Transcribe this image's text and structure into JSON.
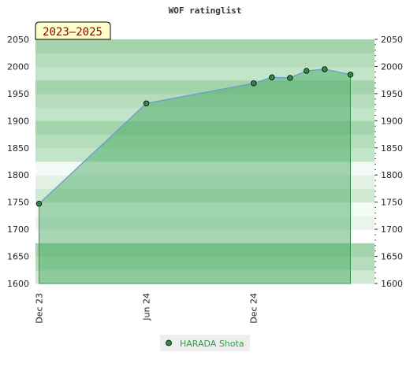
{
  "chart_data": {
    "type": "area",
    "title": "WOF ratinglist",
    "badge": "2023–2025",
    "ylim": [
      1600,
      2050
    ],
    "yticks": [
      1600,
      1650,
      1700,
      1750,
      1800,
      1850,
      1900,
      1950,
      2000,
      2050
    ],
    "xlim": [
      "2023-11-25",
      "2025-06-25"
    ],
    "xticks": [
      {
        "label": "Dec 23",
        "date": "2023-12-01"
      },
      {
        "label": "Jun 24",
        "date": "2024-06-01"
      },
      {
        "label": "Dec 24",
        "date": "2024-12-01"
      }
    ],
    "series": [
      {
        "name": "HARADA Shota",
        "points": [
          {
            "x": "2023-12-01",
            "y": 1747
          },
          {
            "x": "2024-06-01",
            "y": 1932
          },
          {
            "x": "2024-12-01",
            "y": 1969
          },
          {
            "x": "2025-01-01",
            "y": 1980
          },
          {
            "x": "2025-02-01",
            "y": 1979
          },
          {
            "x": "2025-03-01",
            "y": 1992
          },
          {
            "x": "2025-04-01",
            "y": 1995
          },
          {
            "x": "2025-05-15",
            "y": 1985
          }
        ]
      }
    ],
    "grid": true,
    "legend_position": "bottom-center",
    "colors": {
      "line": "#6a9fd8",
      "fill": "#3fa45a",
      "marker": "#2e8b4a",
      "legend_text": "#2e9e44",
      "badge_bg": "#ffffcc"
    }
  }
}
